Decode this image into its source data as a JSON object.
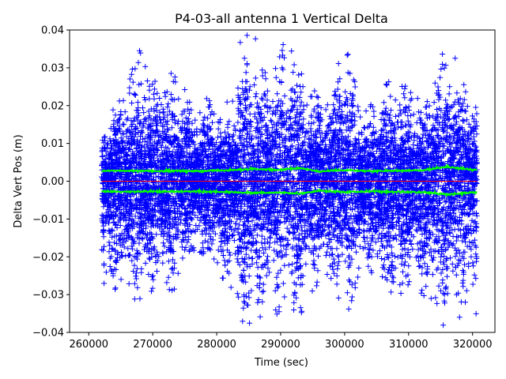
{
  "chart_data": {
    "type": "scatter",
    "title": "P4-03-all antenna 1 Vertical Delta",
    "xlabel": "Time (sec)",
    "ylabel": "Delta Vert Pos (m)",
    "xlim": [
      257000,
      323500
    ],
    "ylim": [
      -0.04,
      0.04
    ],
    "x_ticks": [
      260000,
      270000,
      280000,
      290000,
      300000,
      310000,
      320000
    ],
    "x_tick_labels": [
      "260000",
      "270000",
      "280000",
      "290000",
      "300000",
      "310000",
      "320000"
    ],
    "y_ticks": [
      -0.04,
      -0.03,
      -0.02,
      -0.01,
      0.0,
      0.01,
      0.02,
      0.03,
      0.04
    ],
    "y_tick_labels": [
      "−0.04",
      "−0.03",
      "−0.02",
      "−0.01",
      "0.00",
      "0.01",
      "0.02",
      "0.03",
      "0.04"
    ],
    "grid": false,
    "x_range_data": [
      262000,
      320700
    ],
    "series": [
      {
        "role": "delta-points",
        "marker": "+",
        "color": "#0000ff",
        "envelope": {
          "x": [
            262000,
            264000,
            266000,
            268000,
            270000,
            272000,
            274000,
            276000,
            278000,
            280000,
            282000,
            284000,
            286000,
            288000,
            290000,
            292000,
            294000,
            296000,
            298000,
            300000,
            302000,
            304000,
            306000,
            308000,
            310000,
            312000,
            314000,
            316000,
            318000,
            320000
          ],
          "upper": [
            0.016,
            0.02,
            0.028,
            0.036,
            0.028,
            0.034,
            0.03,
            0.02,
            0.024,
            0.02,
            0.022,
            0.04,
            0.038,
            0.03,
            0.036,
            0.04,
            0.03,
            0.024,
            0.026,
            0.04,
            0.024,
            0.02,
            0.026,
            0.03,
            0.024,
            0.022,
            0.034,
            0.04,
            0.03,
            0.024
          ],
          "lower": [
            -0.03,
            -0.03,
            -0.032,
            -0.034,
            -0.03,
            -0.032,
            -0.028,
            -0.022,
            -0.022,
            -0.024,
            -0.03,
            -0.04,
            -0.04,
            -0.034,
            -0.036,
            -0.038,
            -0.036,
            -0.03,
            -0.03,
            -0.036,
            -0.03,
            -0.026,
            -0.03,
            -0.032,
            -0.03,
            -0.03,
            -0.038,
            -0.04,
            -0.036,
            -0.038
          ]
        }
      },
      {
        "role": "upper-band",
        "color": "#00ff00",
        "x": [
          262000,
          266000,
          270000,
          274000,
          278000,
          282000,
          286000,
          290000,
          293000,
          296000,
          300000,
          304000,
          308000,
          312000,
          316000,
          320000
        ],
        "y": [
          0.0027,
          0.0028,
          0.0027,
          0.0027,
          0.0027,
          0.0029,
          0.0032,
          0.003,
          0.0035,
          0.0026,
          0.0029,
          0.0027,
          0.0028,
          0.0029,
          0.0038,
          0.003
        ]
      },
      {
        "role": "lower-band",
        "color": "#00ff00",
        "x": [
          262000,
          266000,
          270000,
          274000,
          278000,
          282000,
          286000,
          290000,
          293000,
          296000,
          300000,
          304000,
          308000,
          312000,
          316000,
          320000
        ],
        "y": [
          -0.0027,
          -0.0028,
          -0.0027,
          -0.0027,
          -0.0027,
          -0.0029,
          -0.0031,
          -0.003,
          -0.0033,
          -0.0025,
          -0.0029,
          -0.0027,
          -0.0028,
          -0.0029,
          -0.0035,
          -0.003
        ]
      },
      {
        "role": "zero-line",
        "color": "#ff0000",
        "x": [
          262000,
          320700
        ],
        "y": [
          0.0,
          0.0
        ]
      }
    ]
  }
}
